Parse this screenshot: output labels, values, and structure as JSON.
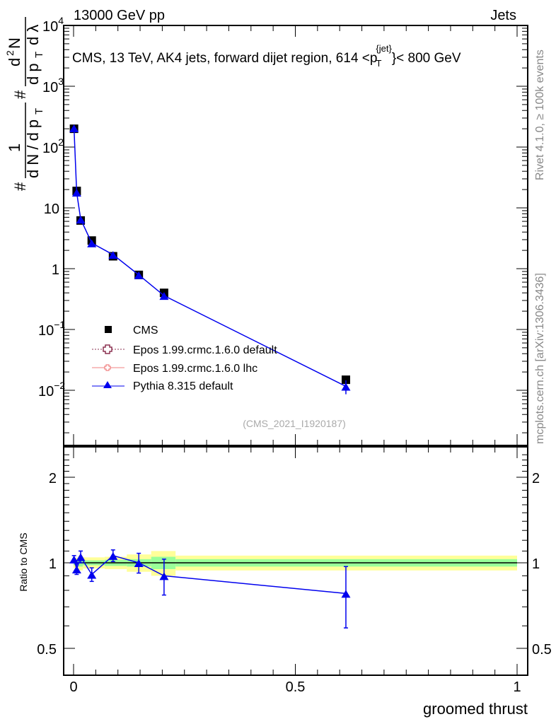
{
  "header": {
    "left": "13000 GeV pp",
    "right": "Jets"
  },
  "side_labels": {
    "rivet": "Rivet 4.1.0, ≥ 100k events",
    "mcplots": "mcplots.cern.ch [arXiv:1306.3436]"
  },
  "chart_data": [
    {
      "type": "scatter",
      "title": "CMS, 13 TeV, AK4 jets, forward dijet region, 614 < pT^{jet} < 800 GeV",
      "title_text": "CMS, 13 TeV, AK4 jets, forward dijet region, 614 <p",
      "title_sub": "T",
      "title_sup": "{jet}",
      "title_tail": "}< 800 GeV",
      "ylabel": "1/(dN/dpT) d²N/(dpT dλ)",
      "ylabel_parts": {
        "a": "#",
        "b": "1",
        "c": "d N / d p",
        "d": "T",
        "e": "#",
        "f": "d",
        "g": "2",
        "h": "N",
        "i": "d p",
        "j": "T",
        "k": "d λ"
      },
      "yscale": "log",
      "ylim": [
        0.0013,
        10000
      ],
      "xlim": [
        -0.02,
        1.02
      ],
      "y_tick_labels": [
        {
          "v": 10000,
          "base": "10",
          "exp": "4"
        },
        {
          "v": 1000,
          "base": "10",
          "exp": "3"
        },
        {
          "v": 100,
          "base": "10",
          "exp": "2"
        },
        {
          "v": 10,
          "base": "10",
          "exp": ""
        },
        {
          "v": 1,
          "base": "1",
          "exp": ""
        },
        {
          "v": 0.1,
          "base": "10",
          "exp": "−1"
        },
        {
          "v": 0.01,
          "base": "10",
          "exp": "−2"
        }
      ],
      "x": [
        0.001,
        0.007,
        0.016,
        0.041,
        0.089,
        0.147,
        0.204,
        0.614
      ],
      "series": [
        {
          "name": "CMS",
          "color": "#000000",
          "marker": "square",
          "values": [
            200,
            19,
            6.2,
            2.9,
            1.6,
            0.79,
            0.4,
            0.0149
          ]
        },
        {
          "name": "Epos 1.99.crmc.1.6.0 default",
          "color": "#8b3050",
          "marker": "open-cross",
          "values": []
        },
        {
          "name": "Epos 1.99.crmc.1.6.0 lhc",
          "color": "#f08080",
          "marker": "open-cross",
          "values": []
        },
        {
          "name": "Pythia 8.315 default",
          "color": "#0000ee",
          "marker": "triangle",
          "values": [
            206,
            18,
            6.5,
            2.64,
            1.7,
            0.79,
            0.36,
            0.0116
          ],
          "errors": [
            4,
            0.6,
            0.25,
            0.1,
            0.06,
            0.05,
            0.04,
            0.003
          ]
        }
      ],
      "legend_position": "lower-left",
      "watermark": "(CMS_2021_I1920187)"
    },
    {
      "type": "scatter",
      "ylabel": "Ratio to CMS",
      "xlabel": "groomed thrust",
      "yscale": "log",
      "ylim": [
        0.4,
        2.56
      ],
      "xlim": [
        -0.02,
        1.02
      ],
      "y_ticks": [
        {
          "v": 0.5,
          "label": "0.5"
        },
        {
          "v": 1,
          "label": "1"
        },
        {
          "v": 2,
          "label": "2"
        }
      ],
      "x_ticks": [
        {
          "v": 0,
          "label": "0"
        },
        {
          "v": 0.5,
          "label": "0.5"
        },
        {
          "v": 1,
          "label": "1"
        }
      ],
      "bin_edges": [
        0,
        0.003,
        0.011,
        0.021,
        0.07,
        0.12,
        0.175,
        0.23,
        1.0
      ],
      "band_green": [
        0.02,
        0.02,
        0.03,
        0.02,
        0.025,
        0.03,
        0.05,
        0.03
      ],
      "band_yellow": [
        0.04,
        0.04,
        0.06,
        0.045,
        0.05,
        0.07,
        0.1,
        0.06
      ],
      "x": [
        0.001,
        0.007,
        0.016,
        0.041,
        0.089,
        0.147,
        0.204,
        0.614
      ],
      "ratio": {
        "name": "Pythia 8.315 default",
        "values": [
          1.03,
          0.95,
          1.05,
          0.91,
          1.06,
          1.0,
          0.9,
          0.78
        ],
        "errors": [
          0.03,
          0.04,
          0.05,
          0.05,
          0.05,
          0.08,
          0.13,
          0.19
        ]
      }
    }
  ],
  "colors": {
    "green": "#99ff99",
    "yellow": "#ffff99",
    "pythia": "#0000ee"
  }
}
